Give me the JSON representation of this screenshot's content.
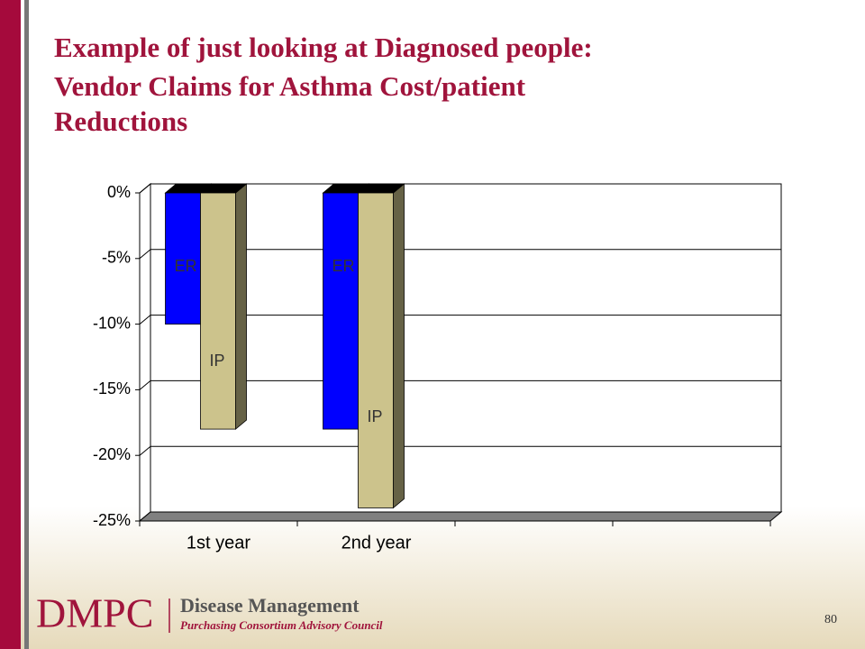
{
  "slide": {
    "title": [
      "Example of just looking at Diagnosed people:",
      "Vendor Claims for Asthma Cost/patient",
      "Reductions"
    ],
    "logo": "DMPC",
    "org_name": "Disease Management",
    "org_subtitle": "Purchasing Consortium Advisory Council",
    "page_number": "80"
  },
  "chart_data": {
    "type": "bar",
    "categories": [
      "1st year",
      "2nd year",
      null,
      null
    ],
    "series": [
      {
        "name": "ER",
        "color": "#0000ff",
        "values": [
          -10,
          -18,
          null,
          null
        ]
      },
      {
        "name": "IP",
        "color": "#ccc38c",
        "values": [
          -18,
          -24,
          null,
          null
        ]
      }
    ],
    "ylim": [
      0,
      -25
    ],
    "yticks": [
      {
        "value": 0,
        "label": "0%"
      },
      {
        "value": -5,
        "label": "-5%"
      },
      {
        "value": -10,
        "label": "-10%"
      },
      {
        "value": -15,
        "label": "-15%"
      },
      {
        "value": -20,
        "label": "-20%"
      },
      {
        "value": -25,
        "label": "-25%"
      }
    ],
    "grid": true
  }
}
